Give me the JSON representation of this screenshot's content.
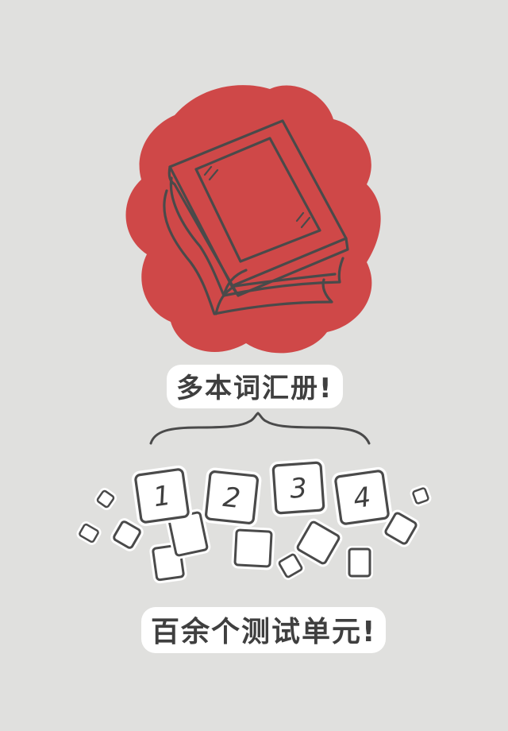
{
  "feature_1": {
    "headline": "多本词汇册!",
    "icon": "book-stack-icon"
  },
  "feature_2": {
    "headline": "百余个测试单元!",
    "tiles": [
      "1",
      "2",
      "3",
      "4"
    ],
    "icon": "cards-icon"
  },
  "colors": {
    "background": "#e0e0de",
    "accent_blob": "#cf4848",
    "ink": "#3f3f3f"
  }
}
